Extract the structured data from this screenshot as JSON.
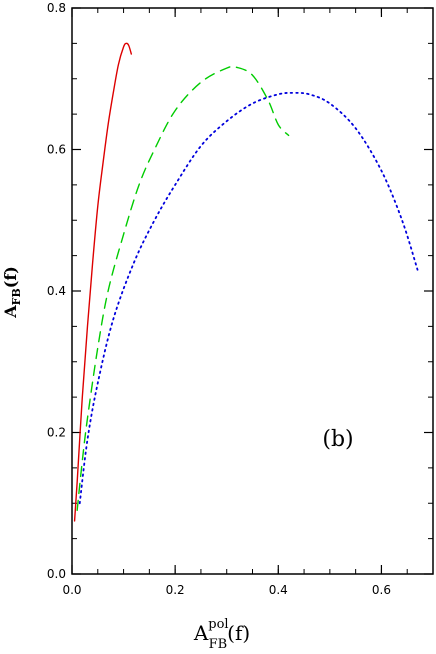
{
  "chart_data": {
    "type": "line",
    "title": "",
    "xlabel": {
      "main": "A",
      "sup": "pol",
      "sub": "FB",
      "suffix": "(f)"
    },
    "ylabel": {
      "main": "A",
      "sub": "FB",
      "suffix": "(f)"
    },
    "xlim": [
      0.0,
      0.7
    ],
    "ylim": [
      0.0,
      0.8
    ],
    "xticks": [
      0.0,
      0.2,
      0.4,
      0.6
    ],
    "xtick_labels": [
      "0.0",
      "0.2",
      "0.4",
      "0.6"
    ],
    "yticks": [
      0.0,
      0.2,
      0.4,
      0.6,
      0.8
    ],
    "ytick_labels": [
      "0.0",
      "0.2",
      "0.4",
      "0.6",
      "0.8"
    ],
    "grid": false,
    "annotation": "(b)",
    "series": [
      {
        "style": "solid",
        "color": "#dd0000",
        "x": [
          0.005,
          0.01,
          0.02,
          0.03,
          0.04,
          0.05,
          0.06,
          0.07,
          0.08,
          0.09,
          0.1,
          0.105,
          0.11,
          0.115
        ],
        "y": [
          0.075,
          0.13,
          0.25,
          0.35,
          0.44,
          0.52,
          0.58,
          0.635,
          0.68,
          0.72,
          0.745,
          0.75,
          0.747,
          0.735
        ]
      },
      {
        "style": "dashed",
        "color": "#00cc00",
        "x": [
          0.01,
          0.02,
          0.03,
          0.05,
          0.07,
          0.1,
          0.13,
          0.16,
          0.2,
          0.25,
          0.3,
          0.32,
          0.35,
          0.38,
          0.4,
          0.42
        ],
        "y": [
          0.09,
          0.16,
          0.22,
          0.32,
          0.4,
          0.48,
          0.55,
          0.6,
          0.655,
          0.695,
          0.715,
          0.716,
          0.705,
          0.67,
          0.635,
          0.62
        ]
      },
      {
        "style": "dotted",
        "color": "#0000dd",
        "x": [
          0.015,
          0.03,
          0.05,
          0.08,
          0.12,
          0.16,
          0.2,
          0.25,
          0.3,
          0.35,
          0.4,
          0.43,
          0.46,
          0.5,
          0.55,
          0.6,
          0.64,
          0.67
        ],
        "y": [
          0.1,
          0.19,
          0.27,
          0.36,
          0.44,
          0.5,
          0.55,
          0.605,
          0.64,
          0.665,
          0.678,
          0.68,
          0.678,
          0.665,
          0.63,
          0.57,
          0.5,
          0.43
        ]
      }
    ]
  }
}
